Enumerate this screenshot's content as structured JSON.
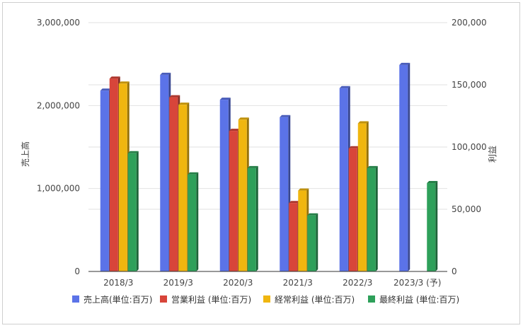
{
  "chart_data": {
    "type": "bar",
    "categories": [
      "2018/3",
      "2019/3",
      "2020/3",
      "2021/3",
      "2022/3",
      "2023/3 (予)"
    ],
    "y_left": {
      "label": "売上高",
      "ylim": [
        0,
        3000000
      ],
      "ticks": [
        0,
        1000000,
        2000000,
        3000000
      ],
      "tick_labels": [
        "0",
        "1,000,000",
        "2,000,000",
        "3,000,000"
      ]
    },
    "y_right": {
      "label": "利益",
      "ylim": [
        0,
        200000
      ],
      "ticks": [
        0,
        50000,
        100000,
        150000,
        200000
      ],
      "tick_labels": [
        "0",
        "50,000",
        "100,000",
        "150,000",
        "200,000"
      ]
    },
    "series": [
      {
        "name": "売上高(単位:百万)",
        "axis": "left",
        "color": "#5b73e8",
        "values": [
          2180000,
          2370000,
          2070000,
          1860000,
          2210000,
          2490000
        ]
      },
      {
        "name": "営業利益 (単位:百万)",
        "axis": "right",
        "color": "#d8453a",
        "values": [
          155000,
          140000,
          113000,
          55000,
          99000,
          null
        ]
      },
      {
        "name": "経常利益 (単位:百万)",
        "axis": "right",
        "color": "#f0b60f",
        "values": [
          151000,
          134000,
          122000,
          65000,
          119000,
          null
        ]
      },
      {
        "name": "最終利益 (単位:百万)",
        "axis": "right",
        "color": "#2ea05a",
        "values": [
          95000,
          78000,
          83000,
          45000,
          83000,
          71000
        ]
      }
    ],
    "grid": true,
    "legend_position": "bottom"
  }
}
